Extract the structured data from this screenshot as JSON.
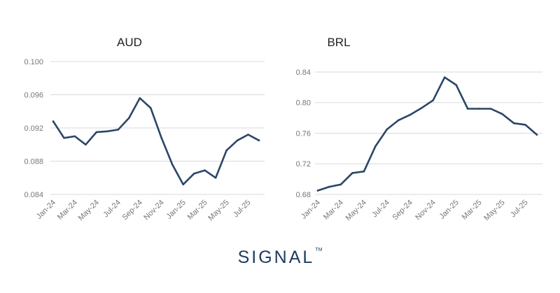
{
  "chart_data": [
    {
      "type": "line",
      "title": "AUD",
      "xlabel": "",
      "ylabel": "",
      "ylim": [
        0.084,
        0.1
      ],
      "yticks": [
        "0.100",
        "0.096",
        "0.092",
        "0.088",
        "0.084"
      ],
      "grid": true,
      "x": [
        "Jan-24",
        "Feb-24",
        "Mar-24",
        "Apr-24",
        "May-24",
        "Jun-24",
        "Jul-24",
        "Aug-24",
        "Sep-24",
        "Oct-24",
        "Nov-24",
        "Dec-24",
        "Jan-25",
        "Feb-25",
        "Mar-25",
        "Apr-25",
        "May-25",
        "Jun-25",
        "Jul-25",
        "Aug-25"
      ],
      "x_tick_labels": [
        "Jan-24",
        "Mar-24",
        "May-24",
        "Jul-24",
        "Sep-24",
        "Nov-24",
        "Jan-25",
        "Mar-25",
        "May-25",
        "Jul-25"
      ],
      "values": [
        0.0928,
        0.0908,
        0.091,
        0.09,
        0.0915,
        0.0916,
        0.0918,
        0.0932,
        0.0956,
        0.0944,
        0.0908,
        0.0876,
        0.0852,
        0.0865,
        0.0869,
        0.086,
        0.0893,
        0.0905,
        0.0912,
        0.0905
      ]
    },
    {
      "type": "line",
      "title": "BRL",
      "xlabel": "",
      "ylabel": "",
      "ylim": [
        0.68,
        0.85
      ],
      "yticks": [
        "0.84",
        "0.80",
        "0.76",
        "0.72",
        "0.68"
      ],
      "grid": true,
      "x": [
        "Jan-24",
        "Feb-24",
        "Mar-24",
        "Apr-24",
        "May-24",
        "Jun-24",
        "Jul-24",
        "Aug-24",
        "Sep-24",
        "Oct-24",
        "Nov-24",
        "Dec-24",
        "Jan-25",
        "Feb-25",
        "Mar-25",
        "Apr-25",
        "May-25",
        "Jun-25",
        "Jul-25",
        "Aug-25"
      ],
      "x_tick_labels": [
        "Jan-24",
        "Mar-24",
        "May-24",
        "Jul-24",
        "Sep-24",
        "Nov-24",
        "Jan-25",
        "Mar-25",
        "May-25",
        "Jul-25"
      ],
      "values": [
        0.685,
        0.69,
        0.693,
        0.708,
        0.71,
        0.743,
        0.765,
        0.777,
        0.784,
        0.793,
        0.803,
        0.833,
        0.823,
        0.792,
        0.792,
        0.792,
        0.785,
        0.773,
        0.771,
        0.758
      ]
    }
  ],
  "logo": {
    "text": "SIGNAL",
    "trademark": "TM"
  },
  "colors": {
    "series": "#2c4668",
    "logo": "#1f3a5f",
    "grid": "#d9d9d9"
  }
}
